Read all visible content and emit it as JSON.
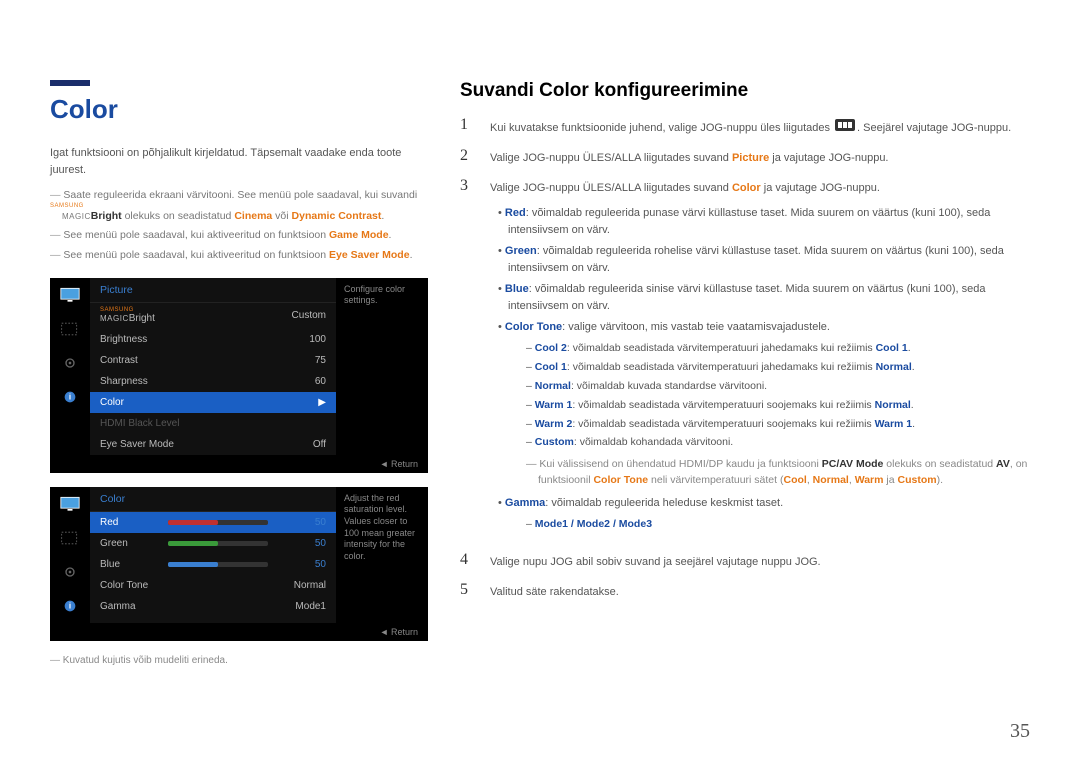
{
  "title": "Color",
  "intro": "Igat funktsiooni on põhjalikult kirjeldatud. Täpsemalt vaadake enda toote juurest.",
  "notes": {
    "n1a": "Saate reguleerida ekraani värvitooni. See menüü pole saadaval, kui suvandi ",
    "n1b": "Bright",
    "n1c": " olekuks on seadistatud ",
    "n1d": "Cinema",
    "n1e": " või ",
    "n1f": "Dynamic Contrast",
    "n1g": ".",
    "n2a": "See menüü pole saadaval, kui aktiveeritud on funktsioon ",
    "n2b": "Game Mode",
    "n2c": ".",
    "n3a": "See menüü pole saadaval, kui aktiveeritud on funktsioon ",
    "n3b": "Eye Saver Mode",
    "n3c": "."
  },
  "osd1": {
    "header": "Picture",
    "rows": [
      {
        "label": "Bright",
        "val": "Custom",
        "prefix": "MAGIC",
        "prefixTop": "SAMSUNG"
      },
      {
        "label": "Brightness",
        "val": "100"
      },
      {
        "label": "Contrast",
        "val": "75"
      },
      {
        "label": "Sharpness",
        "val": "60"
      },
      {
        "label": "Color",
        "val": "▶",
        "selected": true
      },
      {
        "label": "HDMI Black Level",
        "val": "",
        "dim": true
      },
      {
        "label": "Eye Saver Mode",
        "val": "Off"
      }
    ],
    "side": "Configure color settings.",
    "footer": "Return"
  },
  "osd2": {
    "header": "Color",
    "rows": [
      {
        "label": "Red",
        "val": "50",
        "slider": 50,
        "sel": true,
        "color": "#c03030"
      },
      {
        "label": "Green",
        "val": "50",
        "slider": 50,
        "color": "#3a9a3a"
      },
      {
        "label": "Blue",
        "val": "50",
        "slider": 50,
        "color": "#3a7fd0"
      },
      {
        "label": "Color Tone",
        "val": "Normal"
      },
      {
        "label": "Gamma",
        "val": "Mode1"
      }
    ],
    "side": "Adjust the red saturation level. Values closer to 100 mean greater intensity for the color.",
    "footer": "Return"
  },
  "caption": "Kuvatud kujutis võib mudeliti erineda.",
  "right_title": "Suvandi Color konfigureerimine",
  "steps": {
    "s1a": "Kui kuvatakse funktsioonide juhend, valige JOG-nuppu üles liigutades ",
    "s1b": ". Seejärel vajutage JOG-nuppu.",
    "s2a": "Valige JOG-nuppu ÜLES/ALLA liigutades suvand ",
    "s2b": "Picture",
    "s2c": " ja vajutage JOG-nuppu.",
    "s3a": "Valige JOG-nuppu ÜLES/ALLA liigutades suvand ",
    "s3b": "Color",
    "s3c": " ja vajutage JOG-nuppu.",
    "s4": "Valige nupu JOG abil sobiv suvand ja seejärel vajutage nuppu JOG.",
    "s5": "Valitud säte rakendatakse."
  },
  "bullets": {
    "red_l": "Red",
    "red_t": ": võimaldab reguleerida punase värvi küllastuse taset. Mida suurem on väärtus (kuni 100), seda intensiivsem on värv.",
    "green_l": "Green",
    "green_t": ": võimaldab reguleerida rohelise värvi küllastuse taset. Mida suurem on väärtus (kuni 100), seda intensiivsem on värv.",
    "blue_l": "Blue",
    "blue_t": ": võimaldab reguleerida sinise värvi küllastuse taset. Mida suurem on väärtus (kuni 100), seda intensiivsem on värv.",
    "ct_l": "Color Tone",
    "ct_t": ": valige värvitoon, mis vastab teie vaatamisvajadustele.",
    "gamma_l": "Gamma",
    "gamma_t": ": võimaldab reguleerida heleduse keskmist taset."
  },
  "ct_sub": {
    "c2_l": "Cool 2",
    "c2_t": ": võimaldab seadistada värvitemperatuuri jahedamaks kui režiimis ",
    "c2_r": "Cool 1",
    "c2_e": ".",
    "c1_l": "Cool 1",
    "c1_t": ": võimaldab seadistada värvitemperatuuri jahedamaks kui režiimis ",
    "c1_r": "Normal",
    "c1_e": ".",
    "n_l": "Normal",
    "n_t": ": võimaldab kuvada standardse värvitooni.",
    "w1_l": "Warm 1",
    "w1_t": ": võimaldab seadistada värvitemperatuuri soojemaks kui režiimis ",
    "w1_r": "Normal",
    "w1_e": ".",
    "w2_l": "Warm 2",
    "w2_t": ": võimaldab seadistada värvitemperatuuri soojemaks kui režiimis ",
    "w2_r": "Warm 1",
    "w2_e": ".",
    "cu_l": "Custom",
    "cu_t": ": võimaldab kohandada värvitooni."
  },
  "ct_note": {
    "a": "Kui välissisend on ühendatud HDMI/DP kaudu ja funktsiooni ",
    "b": "PC/AV Mode",
    "c": " olekuks on seadistatud ",
    "d": "AV",
    "e": ", on funktsioonil ",
    "f": "Color Tone",
    "g": " neli värvitemperatuuri sätet (",
    "h": "Cool",
    "i": ", ",
    "j": "Normal",
    "k": ", ",
    "l": "Warm",
    "m": " ja ",
    "n": "Custom",
    "o": ")."
  },
  "modes": "Mode1 / Mode2 / Mode3",
  "page_num": "35"
}
